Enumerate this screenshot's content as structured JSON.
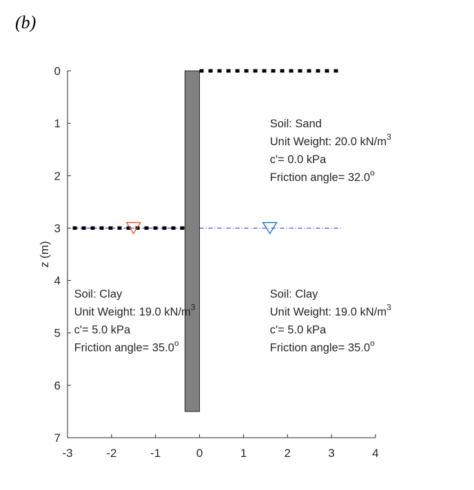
{
  "panel_label": "(b)",
  "chart_data": {
    "type": "diagram",
    "ylabel": "z (m)",
    "xlim": [
      -3,
      4
    ],
    "ylim": [
      0,
      7
    ],
    "y_reversed": true,
    "xticks": [
      "-3",
      "-2",
      "-1",
      "0",
      "1",
      "2",
      "3",
      "4"
    ],
    "yticks": [
      "0",
      "1",
      "2",
      "3",
      "4",
      "5",
      "6",
      "7"
    ],
    "wall": {
      "x": [
        -0.33,
        0
      ],
      "z": [
        0,
        6.5
      ],
      "color": "#808080"
    },
    "ground_right": {
      "x": [
        0,
        3.25
      ],
      "z": 0
    },
    "ground_left": {
      "x": [
        -2.85,
        0
      ],
      "z": 3
    },
    "water_right": {
      "x": [
        0,
        3.25
      ],
      "z": 3
    },
    "water_markers": [
      {
        "x": -1.5,
        "z": 3,
        "color": "#d95319"
      },
      {
        "x": 1.6,
        "z": 3,
        "color": "#0072bd"
      }
    ],
    "annotations": [
      {
        "x": 1.6,
        "z": 1.0,
        "lines": [
          "Soil: Sand",
          "Unit Weight: 20.0 kN/m",
          "c'= 0.0 kPa",
          "Friction angle= 32.0"
        ]
      },
      {
        "x": -2.85,
        "z": 4.25,
        "lines": [
          "Soil: Clay",
          "Unit Weight: 19.0 kN/m",
          "c'= 5.0 kPa",
          "Friction angle= 35.0"
        ]
      },
      {
        "x": 1.6,
        "z": 4.25,
        "lines": [
          "Soil: Clay",
          "Unit Weight: 19.0 kN/m",
          "c'= 5.0 kPa",
          "Friction angle= 35.0"
        ]
      }
    ],
    "unit_superscript": "3",
    "degree_symbol": "o"
  }
}
